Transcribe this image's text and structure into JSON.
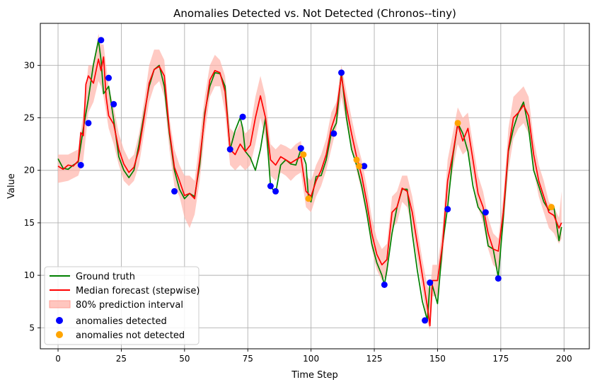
{
  "chart_data": {
    "type": "line",
    "title": "Anomalies Detected vs. Not Detected  (Chronos--tiny)",
    "xlabel": "Time Step",
    "ylabel": "Value",
    "xlim": [
      -7,
      210
    ],
    "ylim": [
      3,
      34
    ],
    "x_ticks": [
      0,
      25,
      50,
      75,
      100,
      125,
      150,
      175,
      200
    ],
    "y_ticks": [
      5,
      10,
      15,
      20,
      25,
      30
    ],
    "grid": true,
    "legend_position": "lower-left",
    "colors": {
      "ground_truth": "#008000",
      "median": "#ff0000",
      "interval": "#ffb3aa",
      "detected": "#0000ff",
      "not_detected": "#ffa500"
    },
    "series": [
      {
        "name": "Ground truth",
        "type": "line",
        "x": [
          0,
          2,
          4,
          6,
          8,
          10,
          12,
          14,
          16,
          17,
          18,
          20,
          22,
          24,
          26,
          28,
          30,
          32,
          34,
          36,
          38,
          40,
          42,
          44,
          46,
          48,
          50,
          52,
          54,
          56,
          58,
          60,
          62,
          64,
          66,
          68,
          70,
          72,
          73,
          74,
          76,
          78,
          80,
          82,
          84,
          86,
          88,
          90,
          92,
          94,
          96,
          98,
          99,
          100,
          102,
          104,
          106,
          108,
          110,
          112,
          114,
          116,
          118,
          120,
          122,
          124,
          126,
          128,
          129,
          130,
          132,
          134,
          136,
          138,
          140,
          142,
          144,
          146,
          147,
          148,
          150,
          152,
          154,
          156,
          158,
          160,
          162,
          164,
          166,
          168,
          170,
          172,
          174,
          176,
          178,
          180,
          182,
          184,
          186,
          188,
          190,
          192,
          194,
          196,
          198,
          199
        ],
        "y": [
          21.1,
          20.2,
          20.1,
          20.5,
          20.8,
          24.0,
          26.8,
          30.1,
          32.4,
          30.5,
          27.3,
          28.0,
          24.8,
          21.3,
          20.0,
          19.3,
          20.0,
          22.5,
          25.3,
          28.0,
          29.6,
          30.0,
          28.0,
          23.5,
          20.0,
          18.2,
          17.3,
          17.8,
          17.5,
          20.5,
          25.5,
          28.0,
          29.3,
          29.2,
          28.0,
          22.0,
          23.8,
          25.0,
          24.0,
          21.8,
          21.2,
          20.0,
          22.0,
          25.0,
          18.5,
          17.8,
          20.5,
          21.0,
          20.6,
          20.5,
          22.0,
          20.6,
          17.3,
          17.0,
          19.4,
          19.5,
          21.0,
          23.5,
          24.5,
          29.3,
          25.0,
          22.0,
          20.5,
          18.5,
          16.0,
          13.0,
          11.2,
          10.0,
          9.1,
          10.5,
          14.0,
          16.5,
          18.2,
          18.2,
          14.0,
          10.5,
          7.5,
          5.7,
          9.3,
          9.0,
          7.3,
          13.0,
          16.5,
          21.2,
          24.5,
          23.5,
          21.8,
          18.5,
          16.5,
          15.8,
          12.8,
          12.5,
          9.8,
          15.5,
          21.8,
          24.0,
          25.5,
          26.5,
          24.0,
          20.0,
          18.5,
          17.0,
          16.2,
          16.5,
          13.3,
          14.6
        ]
      },
      {
        "name": "Median forecast (stepwise)",
        "type": "line",
        "x": [
          0,
          2,
          4,
          6,
          8,
          9,
          10,
          11,
          12,
          14,
          16,
          17,
          18,
          19,
          20,
          22,
          24,
          26,
          28,
          30,
          32,
          34,
          36,
          38,
          40,
          42,
          44,
          46,
          48,
          50,
          52,
          54,
          56,
          58,
          60,
          62,
          64,
          66,
          68,
          70,
          72,
          74,
          76,
          78,
          80,
          82,
          84,
          86,
          88,
          90,
          92,
          94,
          96,
          98,
          100,
          102,
          104,
          106,
          108,
          110,
          112,
          114,
          116,
          118,
          120,
          122,
          124,
          126,
          128,
          130,
          132,
          134,
          136,
          138,
          140,
          142,
          144,
          146,
          147,
          148,
          150,
          152,
          154,
          156,
          158,
          160,
          162,
          164,
          166,
          168,
          170,
          172,
          174,
          176,
          178,
          180,
          182,
          184,
          186,
          188,
          190,
          192,
          194,
          196,
          198,
          199
        ],
        "y": [
          20.4,
          20.1,
          20.5,
          20.4,
          20.9,
          23.6,
          23.3,
          28.2,
          29.0,
          28.3,
          30.6,
          29.5,
          30.8,
          27.0,
          25.2,
          24.4,
          22.0,
          20.6,
          19.8,
          20.3,
          22.0,
          25.0,
          28.3,
          29.6,
          29.9,
          29.0,
          23.8,
          20.3,
          19.0,
          17.6,
          17.8,
          17.3,
          21.0,
          25.2,
          28.6,
          29.5,
          29.3,
          27.5,
          22.0,
          21.5,
          22.5,
          21.8,
          22.4,
          25.0,
          27.1,
          25.0,
          21.0,
          20.5,
          21.3,
          21.0,
          20.7,
          21.0,
          21.3,
          18.0,
          17.5,
          19.0,
          20.0,
          21.5,
          24.0,
          25.5,
          29.0,
          26.0,
          23.5,
          21.3,
          19.5,
          17.0,
          14.0,
          12.0,
          11.0,
          11.5,
          16.0,
          16.5,
          18.3,
          18.0,
          16.0,
          13.0,
          10.0,
          7.0,
          5.2,
          9.5,
          9.5,
          13.0,
          19.0,
          21.5,
          24.4,
          22.8,
          24.0,
          21.0,
          17.8,
          16.5,
          14.0,
          12.5,
          12.3,
          16.0,
          22.0,
          25.0,
          25.5,
          26.2,
          25.2,
          21.5,
          19.0,
          17.5,
          16.0,
          15.7,
          14.5,
          15.0
        ]
      }
    ],
    "interval": {
      "name": "80% prediction interval",
      "x": [
        0,
        4,
        8,
        10,
        12,
        14,
        16,
        17,
        18,
        20,
        22,
        24,
        26,
        28,
        30,
        32,
        34,
        36,
        38,
        40,
        42,
        44,
        46,
        48,
        50,
        52,
        54,
        56,
        58,
        60,
        62,
        64,
        66,
        68,
        70,
        72,
        74,
        76,
        78,
        80,
        82,
        84,
        86,
        88,
        90,
        92,
        94,
        96,
        98,
        100,
        102,
        104,
        106,
        108,
        110,
        112,
        114,
        116,
        118,
        120,
        122,
        124,
        126,
        128,
        130,
        132,
        134,
        136,
        138,
        140,
        142,
        144,
        146,
        147,
        148,
        150,
        152,
        154,
        156,
        158,
        160,
        162,
        164,
        166,
        168,
        170,
        172,
        174,
        176,
        178,
        180,
        182,
        184,
        186,
        188,
        190,
        192,
        194,
        196,
        198,
        199
      ],
      "lower": [
        18.8,
        19.0,
        19.5,
        21.0,
        25.5,
        26.5,
        28.5,
        28.0,
        27.0,
        24.0,
        22.5,
        20.5,
        19.0,
        18.5,
        19.0,
        20.5,
        23.5,
        26.5,
        28.0,
        28.5,
        27.0,
        22.0,
        18.5,
        17.5,
        15.5,
        14.5,
        15.8,
        19.0,
        23.5,
        27.0,
        28.0,
        28.0,
        25.5,
        20.5,
        20.0,
        20.5,
        20.0,
        20.5,
        22.5,
        25.0,
        23.0,
        19.5,
        19.0,
        19.8,
        19.5,
        19.0,
        19.5,
        19.8,
        16.5,
        16.0,
        17.5,
        18.5,
        20.0,
        22.0,
        24.0,
        27.0,
        24.5,
        22.0,
        20.0,
        18.0,
        15.5,
        12.5,
        10.5,
        9.5,
        10.0,
        14.5,
        15.0,
        17.0,
        16.5,
        14.5,
        11.5,
        8.5,
        5.5,
        4.8,
        8.0,
        8.0,
        11.5,
        17.0,
        20.0,
        22.5,
        21.5,
        22.0,
        19.5,
        16.5,
        15.0,
        12.5,
        11.0,
        10.5,
        14.5,
        20.0,
        23.0,
        24.0,
        24.5,
        23.5,
        20.0,
        17.5,
        16.0,
        14.5,
        14.0,
        13.0,
        13.5
      ],
      "upper": [
        21.5,
        21.5,
        22.0,
        25.5,
        30.0,
        30.0,
        33.0,
        32.0,
        32.0,
        28.0,
        26.0,
        23.5,
        22.0,
        21.0,
        21.5,
        23.5,
        26.5,
        30.0,
        31.5,
        31.5,
        30.5,
        25.0,
        22.0,
        20.5,
        19.5,
        19.5,
        19.0,
        23.0,
        27.0,
        30.0,
        31.0,
        30.5,
        29.0,
        24.0,
        23.5,
        24.5,
        23.5,
        24.0,
        27.0,
        29.0,
        27.0,
        22.5,
        22.0,
        22.5,
        22.3,
        22.0,
        22.5,
        22.8,
        19.5,
        19.0,
        20.5,
        21.5,
        23.0,
        25.5,
        26.5,
        30.0,
        27.5,
        25.0,
        22.8,
        21.0,
        18.5,
        15.5,
        13.5,
        12.5,
        13.0,
        17.5,
        18.0,
        19.5,
        19.5,
        17.5,
        14.5,
        11.5,
        9.0,
        8.5,
        11.0,
        11.0,
        14.5,
        21.0,
        23.5,
        26.0,
        25.0,
        25.5,
        22.5,
        19.5,
        18.0,
        15.5,
        14.0,
        13.5,
        17.5,
        24.0,
        27.0,
        27.5,
        28.0,
        27.0,
        23.0,
        20.5,
        19.0,
        17.0,
        16.5,
        15.5,
        18.0
      ]
    },
    "anomalies_detected": {
      "name": "anomalies detected",
      "x": [
        9,
        12,
        17,
        20,
        22,
        46,
        68,
        73,
        84,
        86,
        96,
        109,
        112,
        121,
        129,
        145,
        147,
        154,
        169,
        174
      ],
      "y": [
        20.5,
        24.5,
        32.4,
        28.8,
        26.3,
        18.0,
        22.0,
        25.1,
        18.5,
        18.0,
        22.1,
        23.5,
        29.3,
        20.4,
        9.1,
        5.7,
        9.3,
        16.3,
        16.0,
        9.7
      ]
    },
    "anomalies_not_detected": {
      "name": "anomalies not detected",
      "x": [
        97,
        99,
        118,
        119,
        158,
        195
      ],
      "y": [
        21.5,
        17.3,
        21.0,
        20.4,
        24.5,
        16.5
      ]
    },
    "legend": [
      {
        "label": "Ground truth",
        "kind": "line",
        "color": "#008000"
      },
      {
        "label": "Median forecast (stepwise)",
        "kind": "line",
        "color": "#ff0000"
      },
      {
        "label": "80% prediction interval",
        "kind": "patch",
        "color": "#ffb3aa"
      },
      {
        "label": "anomalies detected",
        "kind": "marker",
        "color": "#0000ff"
      },
      {
        "label": "anomalies not detected",
        "kind": "marker",
        "color": "#ffa500"
      }
    ]
  }
}
